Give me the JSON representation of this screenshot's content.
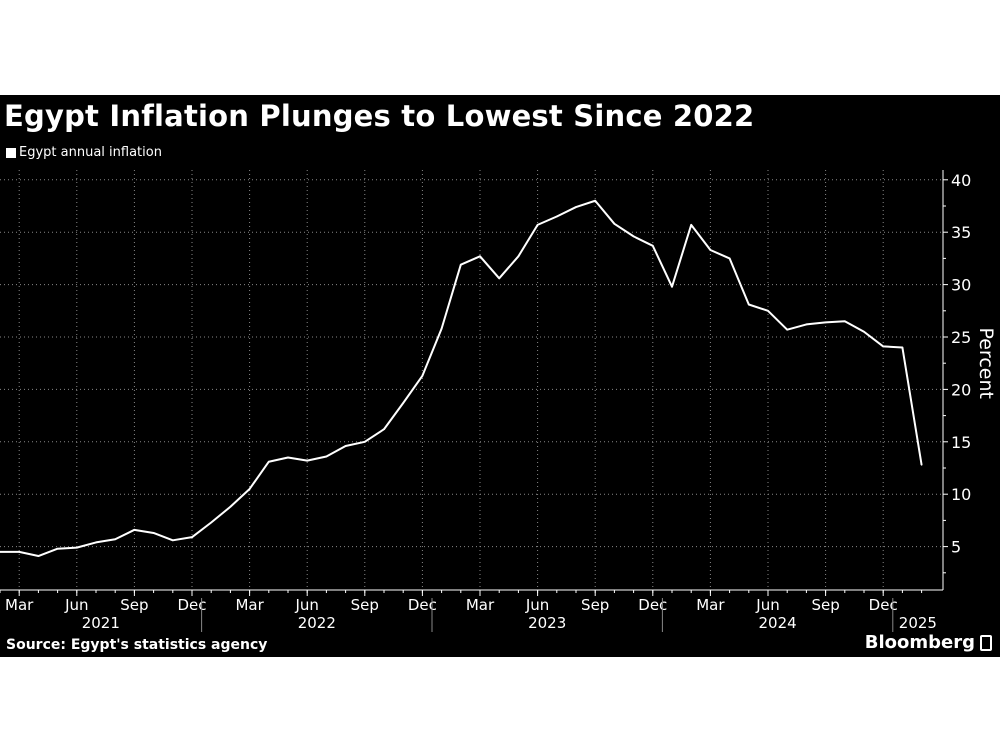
{
  "chart_data": {
    "type": "line",
    "title": "Egypt Inflation Plunges to Lowest Since 2022",
    "ylabel": "Percent",
    "xlabel": "",
    "ylim": [
      0.9,
      41
    ],
    "yticks": [
      5,
      10,
      15,
      20,
      25,
      30,
      35,
      40
    ],
    "grid": true,
    "legend_position": "top-left",
    "y_axis_side": "right",
    "line_color": "#ffffff",
    "background": "#000000",
    "x_start": "2021-02",
    "x_tick_labels": [
      {
        "month": "2021-03",
        "label": "Mar"
      },
      {
        "month": "2021-06",
        "label": "Jun"
      },
      {
        "month": "2021-09",
        "label": "Sep"
      },
      {
        "month": "2021-12",
        "label": "Dec"
      },
      {
        "month": "2022-03",
        "label": "Mar"
      },
      {
        "month": "2022-06",
        "label": "Jun"
      },
      {
        "month": "2022-09",
        "label": "Sep"
      },
      {
        "month": "2022-12",
        "label": "Dec"
      },
      {
        "month": "2023-03",
        "label": "Mar"
      },
      {
        "month": "2023-06",
        "label": "Jun"
      },
      {
        "month": "2023-09",
        "label": "Sep"
      },
      {
        "month": "2023-12",
        "label": "Dec"
      },
      {
        "month": "2024-03",
        "label": "Mar"
      },
      {
        "month": "2024-06",
        "label": "Jun"
      },
      {
        "month": "2024-09",
        "label": "Sep"
      },
      {
        "month": "2024-12",
        "label": "Dec"
      }
    ],
    "year_labels": [
      "2021",
      "2022",
      "2023",
      "2024",
      "2025"
    ],
    "series": [
      {
        "name": "Egypt annual inflation",
        "x": [
          "2021-02",
          "2021-03",
          "2021-04",
          "2021-05",
          "2021-06",
          "2021-07",
          "2021-08",
          "2021-09",
          "2021-10",
          "2021-11",
          "2021-12",
          "2022-01",
          "2022-02",
          "2022-03",
          "2022-04",
          "2022-05",
          "2022-06",
          "2022-07",
          "2022-08",
          "2022-09",
          "2022-10",
          "2022-11",
          "2022-12",
          "2023-01",
          "2023-02",
          "2023-03",
          "2023-04",
          "2023-05",
          "2023-06",
          "2023-07",
          "2023-08",
          "2023-09",
          "2023-10",
          "2023-11",
          "2023-12",
          "2024-01",
          "2024-02",
          "2024-03",
          "2024-04",
          "2024-05",
          "2024-06",
          "2024-07",
          "2024-08",
          "2024-09",
          "2024-10",
          "2024-11",
          "2024-12",
          "2025-01",
          "2025-02"
        ],
        "values": [
          4.5,
          4.5,
          4.1,
          4.8,
          4.9,
          5.4,
          5.7,
          6.6,
          6.3,
          5.6,
          5.9,
          7.3,
          8.8,
          10.5,
          13.1,
          13.5,
          13.2,
          13.6,
          14.6,
          15.0,
          16.2,
          18.7,
          21.3,
          25.8,
          31.9,
          32.7,
          30.6,
          32.7,
          35.7,
          36.5,
          37.4,
          38.0,
          35.8,
          34.6,
          33.7,
          29.8,
          35.7,
          33.3,
          32.5,
          28.1,
          27.5,
          25.7,
          26.2,
          26.4,
          26.5,
          25.5,
          24.1,
          24.0,
          12.8
        ]
      }
    ]
  },
  "source": "Source: Egypt's statistics agency",
  "brand": "Bloomberg"
}
